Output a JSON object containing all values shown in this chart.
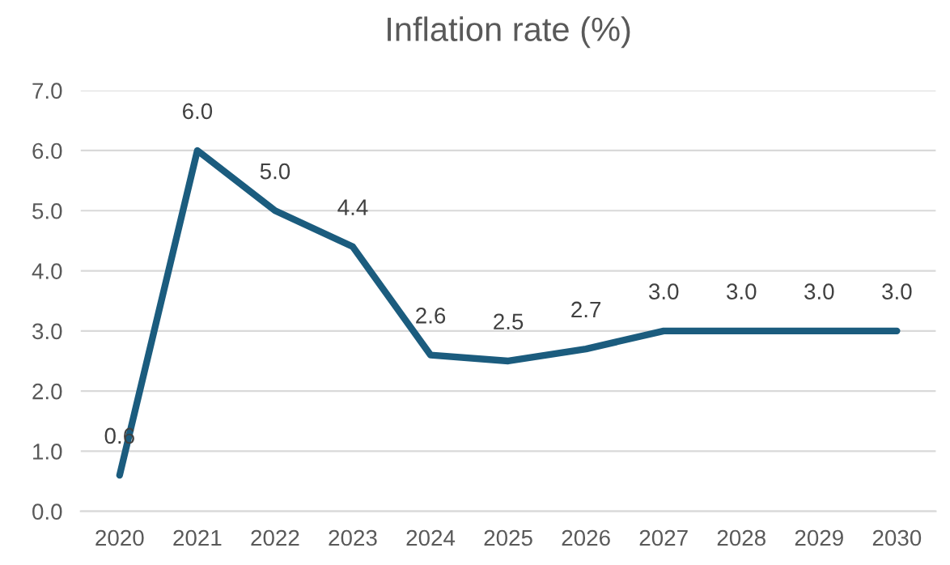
{
  "chart_data": {
    "type": "line",
    "title": "Inflation rate (%)",
    "categories": [
      "2020",
      "2021",
      "2022",
      "2023",
      "2024",
      "2025",
      "2026",
      "2027",
      "2028",
      "2029",
      "2030"
    ],
    "series": [
      {
        "color": "#1b5c7e",
        "values": [
          0.6,
          6.0,
          5.0,
          4.4,
          2.6,
          2.5,
          2.7,
          3.0,
          3.0,
          3.0,
          3.0
        ],
        "value_labels": [
          "0.6",
          "6.0",
          "5.0",
          "4.4",
          "2.6",
          "2.5",
          "2.7",
          "3.0",
          "3.0",
          "3.0",
          "3.0"
        ]
      }
    ],
    "ylim": [
      0,
      7
    ],
    "yticks": [
      {
        "value": 0,
        "label": "0.0"
      },
      {
        "value": 1,
        "label": "1.0"
      },
      {
        "value": 2,
        "label": "2.0"
      },
      {
        "value": 3,
        "label": "3.0"
      },
      {
        "value": 4,
        "label": "4.0"
      },
      {
        "value": 5,
        "label": "5.0"
      },
      {
        "value": 6,
        "label": "6.0"
      },
      {
        "value": 7,
        "label": "7.0"
      }
    ],
    "grid": "y",
    "legend": false,
    "marker": "none",
    "line_style": "solid"
  }
}
